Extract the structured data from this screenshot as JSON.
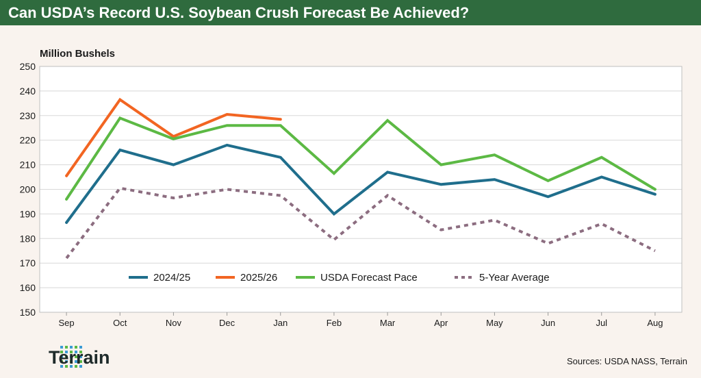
{
  "header": {
    "title": "Can USDA’s Record U.S. Soybean Crush Forecast Be Achieved?"
  },
  "footer": {
    "logo_text": "Terrain",
    "sources": "Sources: USDA NASS, Terrain"
  },
  "colors": {
    "header_bg": "#2f6b3e",
    "s2024": "#1f6e8c",
    "s2025": "#f26522",
    "usda": "#5cb944",
    "avg": "#8c6d80",
    "grid": "#d8d8d8",
    "logo_dots": "#3a9bd5"
  },
  "chart_data": {
    "type": "line",
    "title": "Can USDA’s Record U.S. Soybean Crush Forecast Be Achieved?",
    "ylabel": "Million Bushels",
    "xlabel": "",
    "ylim": [
      150,
      250
    ],
    "yticks": [
      150,
      160,
      170,
      180,
      190,
      200,
      210,
      220,
      230,
      240,
      250
    ],
    "categories": [
      "Sep",
      "Oct",
      "Nov",
      "Dec",
      "Jan",
      "Feb",
      "Mar",
      "Apr",
      "May",
      "Jun",
      "Jul",
      "Aug"
    ],
    "grid": true,
    "legend_position": "bottom-center inside plot",
    "series": [
      {
        "name": "2024/25",
        "color": "#1f6e8c",
        "style": "solid",
        "values": [
          186.5,
          216,
          210,
          218,
          213,
          190,
          207,
          202,
          204,
          197,
          205,
          198
        ]
      },
      {
        "name": "2025/26",
        "color": "#f26522",
        "style": "solid",
        "values": [
          205.5,
          236.5,
          221.5,
          230.5,
          228.5,
          null,
          null,
          null,
          null,
          null,
          null,
          null
        ]
      },
      {
        "name": "USDA Forecast Pace",
        "color": "#5cb944",
        "style": "solid",
        "values": [
          196,
          229,
          220.5,
          226,
          226,
          206.5,
          228,
          210,
          214,
          203.5,
          213,
          200
        ]
      },
      {
        "name": "5-Year Average",
        "color": "#8c6d80",
        "style": "dotted",
        "values": [
          172,
          200.5,
          196.5,
          200,
          197.5,
          179.5,
          197.5,
          183.5,
          187.5,
          178,
          186,
          175
        ]
      }
    ]
  }
}
